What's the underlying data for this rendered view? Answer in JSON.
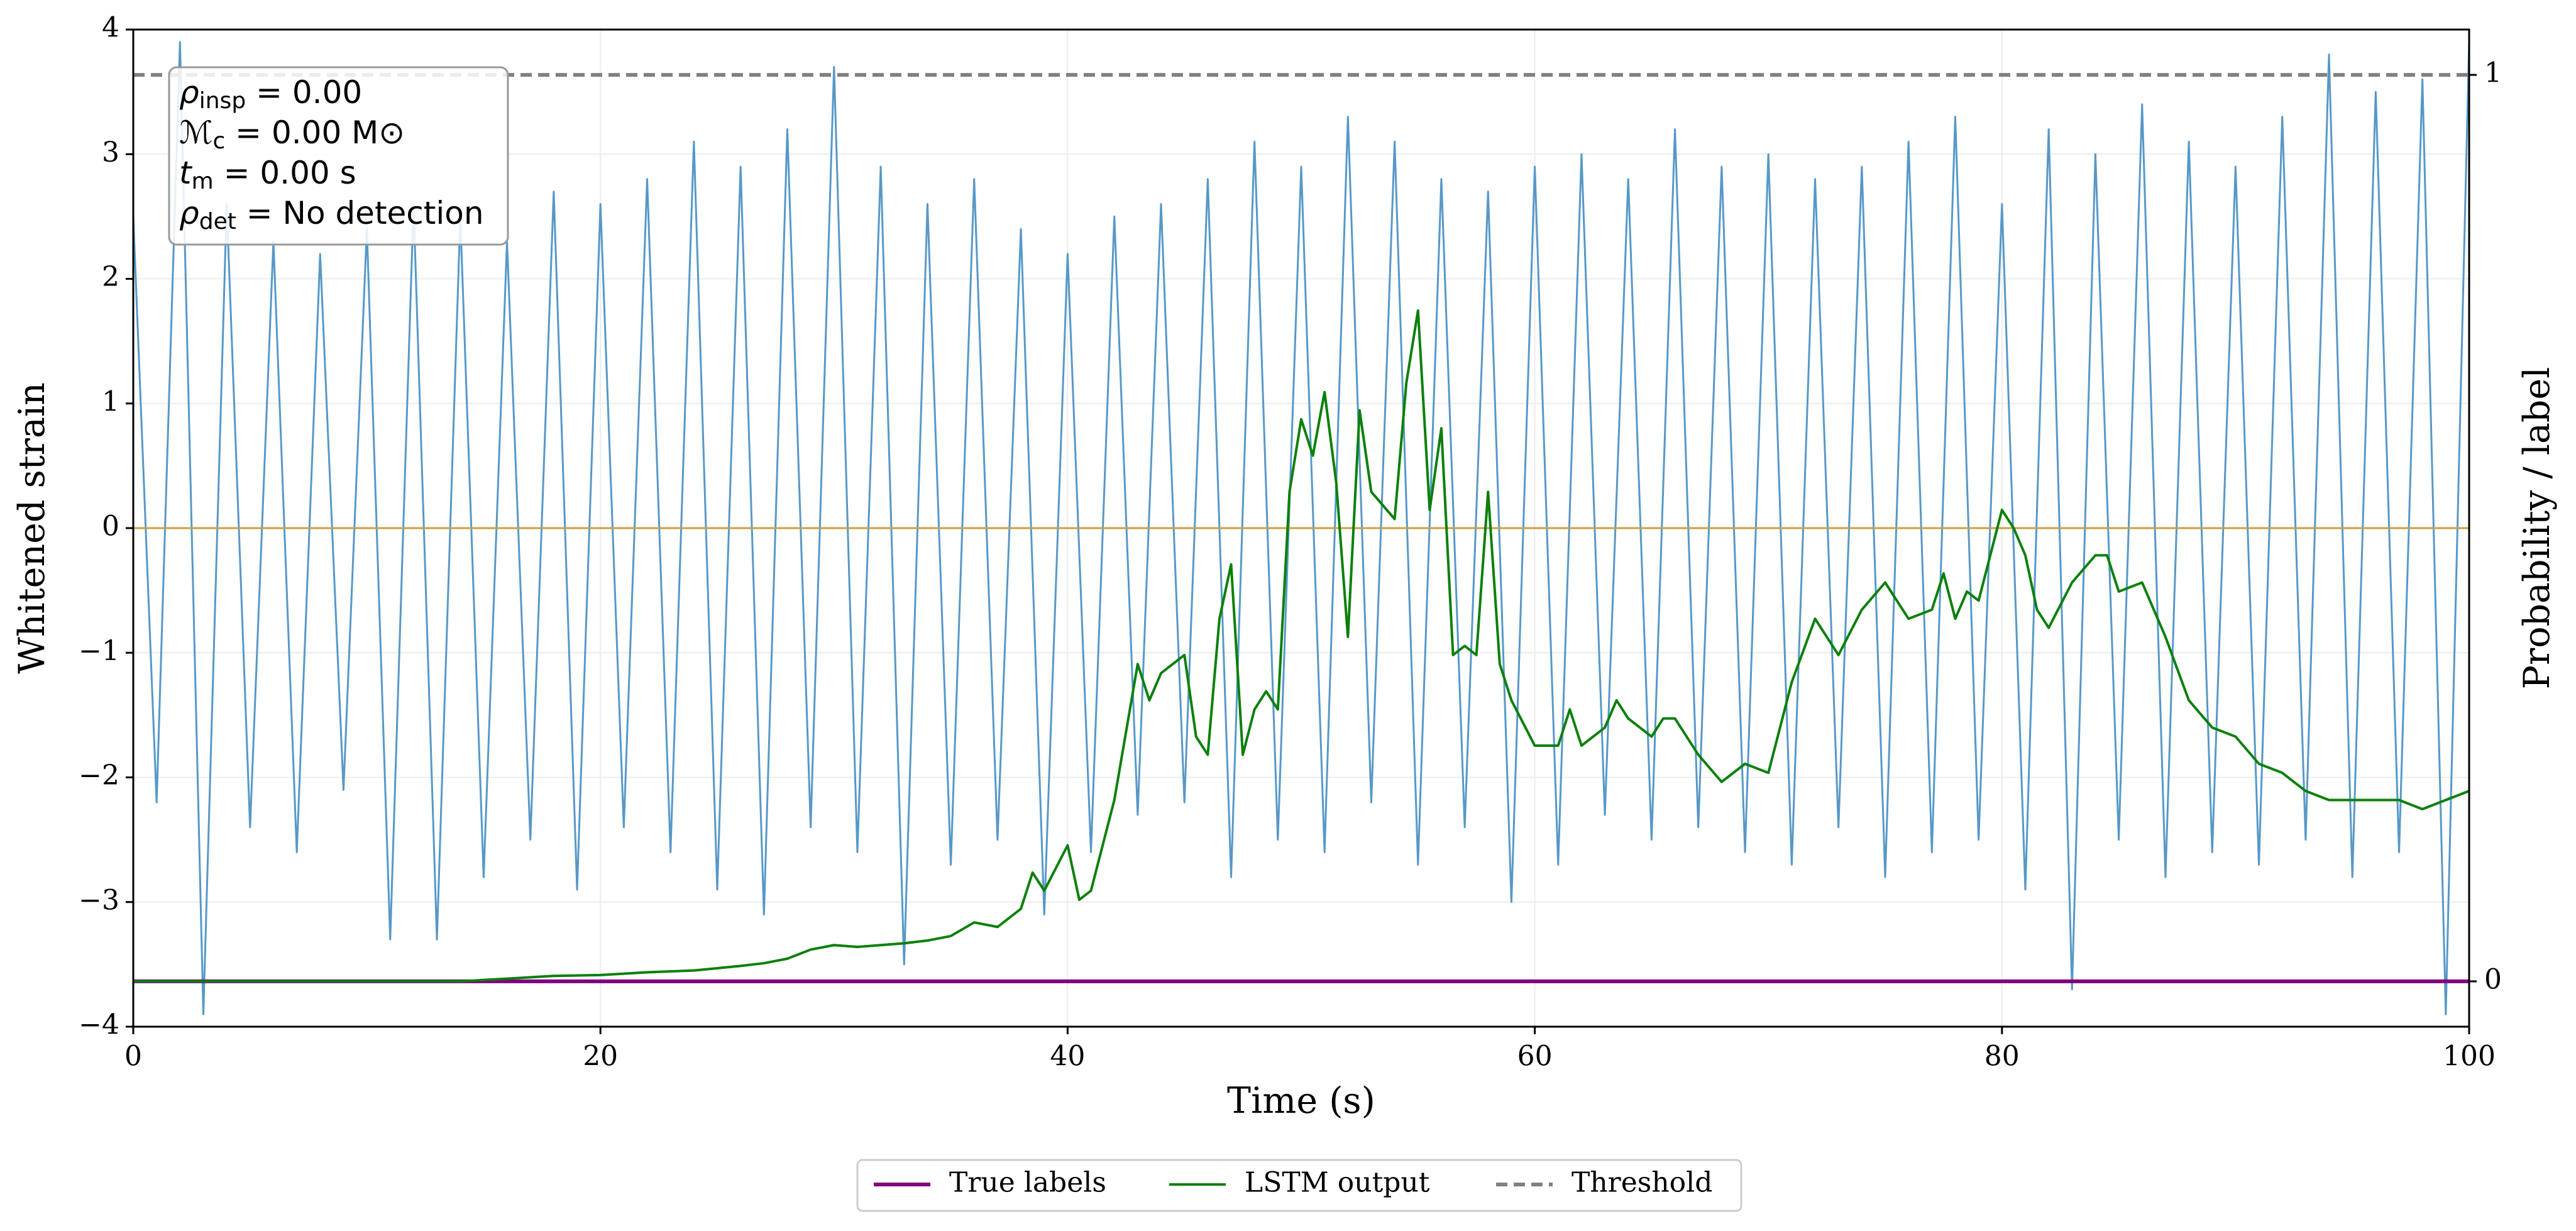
{
  "chart_data": {
    "type": "line",
    "xlabel": "Time (s)",
    "ylabel": "Whitened strain",
    "y2label": "Probability / label",
    "xlim": [
      0,
      100
    ],
    "xticks": [
      0,
      20,
      40,
      60,
      80,
      100
    ],
    "ylim": [
      -4,
      4
    ],
    "yticks": [
      {
        "value": -4,
        "label": "−4"
      },
      {
        "value": -3,
        "label": "−3"
      },
      {
        "value": -2,
        "label": "−2"
      },
      {
        "value": -1,
        "label": "−1"
      },
      0,
      1,
      2,
      3,
      4
    ],
    "y2lim": [
      -0.05,
      1.05
    ],
    "y2ticks": [
      0,
      1
    ],
    "grid": true,
    "legend": "lower center",
    "signal": {
      "color": "#5698c8",
      "x": [
        0,
        1,
        2,
        3,
        4,
        5,
        6,
        7,
        8,
        9,
        10,
        11,
        12,
        13,
        14,
        15,
        16,
        17,
        18,
        19,
        20,
        21,
        22,
        23,
        24,
        25,
        26,
        27,
        28,
        29,
        30,
        31,
        32,
        33,
        34,
        35,
        36,
        37,
        38,
        39,
        40,
        41,
        42,
        43,
        44,
        45,
        46,
        47,
        48,
        49,
        50,
        51,
        52,
        53,
        54,
        55,
        56,
        57,
        58,
        59,
        60,
        61,
        62,
        63,
        64,
        65,
        66,
        67,
        68,
        69,
        70,
        71,
        72,
        73,
        74,
        75,
        76,
        77,
        78,
        79,
        80,
        81,
        82,
        83,
        84,
        85,
        86,
        87,
        88,
        89,
        90,
        91,
        92,
        93,
        94,
        95,
        96,
        97,
        98,
        99,
        100
      ],
      "values": [
        2.5,
        -2.2,
        3.9,
        -3.9,
        2.6,
        -2.4,
        2.3,
        -2.6,
        2.2,
        -2.1,
        2.4,
        -3.3,
        2.6,
        -3.3,
        2.5,
        -2.8,
        2.3,
        -2.5,
        2.7,
        -2.9,
        2.6,
        -2.4,
        2.8,
        -2.6,
        3.1,
        -2.9,
        2.9,
        -3.1,
        3.2,
        -2.4,
        3.7,
        -2.6,
        2.9,
        -3.5,
        2.6,
        -2.7,
        2.8,
        -2.5,
        2.4,
        -3.1,
        2.2,
        -2.6,
        2.5,
        -2.3,
        2.6,
        -2.2,
        2.8,
        -2.8,
        3.1,
        -2.5,
        2.9,
        -2.6,
        3.3,
        -2.2,
        3.1,
        -2.7,
        2.8,
        -2.4,
        2.7,
        -3.0,
        2.9,
        -2.7,
        3.0,
        -2.3,
        2.8,
        -2.5,
        3.2,
        -2.4,
        2.9,
        -2.6,
        3.0,
        -2.7,
        2.8,
        -2.4,
        2.9,
        -2.8,
        3.1,
        -2.6,
        3.3,
        -2.5,
        2.6,
        -2.9,
        3.2,
        -3.7,
        3.0,
        -2.5,
        3.4,
        -2.8,
        3.1,
        -2.6,
        2.9,
        -2.7,
        3.3,
        -2.5,
        3.8,
        -2.8,
        3.5,
        -2.6,
        3.6,
        -3.9,
        3.9
      ]
    },
    "hline": {
      "value": 0,
      "color": "#c8a040"
    },
    "series": [
      {
        "name": "True labels",
        "color": "#800080",
        "axis": "y2",
        "width": 3,
        "x": [
          0,
          100
        ],
        "values": [
          0,
          0
        ]
      },
      {
        "name": "LSTM output",
        "color": "#0a800a",
        "axis": "y2",
        "width": 2,
        "x": [
          0,
          2,
          4,
          6,
          8,
          10,
          12,
          14,
          16,
          18,
          20,
          22,
          24,
          26,
          27,
          28,
          29,
          30,
          31,
          32,
          33,
          34,
          35,
          36,
          37,
          38,
          38.5,
          39,
          40,
          40.5,
          41,
          42,
          43,
          43.5,
          44,
          45,
          45.5,
          46,
          46.5,
          47,
          47.5,
          48,
          48.5,
          49,
          49.5,
          50,
          50.5,
          51,
          51.5,
          52,
          52.5,
          53,
          54,
          54.5,
          55,
          55.5,
          56,
          56.5,
          57,
          57.5,
          58,
          58.5,
          59,
          60,
          61,
          61.5,
          62,
          63,
          63.5,
          64,
          65,
          65.5,
          66,
          67,
          68,
          69,
          70,
          71,
          72,
          73,
          74,
          75,
          76,
          77,
          77.5,
          78,
          78.5,
          79,
          80,
          80.5,
          81,
          81.5,
          82,
          83,
          84,
          84.5,
          85,
          86,
          87,
          88,
          89,
          90,
          91,
          92,
          93,
          94,
          95,
          96,
          97,
          98,
          99,
          100
        ],
        "values": [
          0,
          0,
          0,
          0,
          0,
          0,
          0,
          0,
          0.003,
          0.006,
          0.007,
          0.01,
          0.012,
          0.017,
          0.02,
          0.025,
          0.035,
          0.04,
          0.038,
          0.04,
          0.042,
          0.045,
          0.05,
          0.065,
          0.06,
          0.08,
          0.12,
          0.1,
          0.15,
          0.09,
          0.1,
          0.2,
          0.35,
          0.31,
          0.34,
          0.36,
          0.27,
          0.25,
          0.4,
          0.46,
          0.25,
          0.3,
          0.32,
          0.3,
          0.54,
          0.62,
          0.58,
          0.65,
          0.55,
          0.38,
          0.63,
          0.54,
          0.51,
          0.66,
          0.74,
          0.52,
          0.61,
          0.36,
          0.37,
          0.36,
          0.54,
          0.35,
          0.31,
          0.26,
          0.26,
          0.3,
          0.26,
          0.28,
          0.31,
          0.29,
          0.27,
          0.29,
          0.29,
          0.25,
          0.22,
          0.24,
          0.23,
          0.33,
          0.4,
          0.36,
          0.41,
          0.44,
          0.4,
          0.41,
          0.45,
          0.4,
          0.43,
          0.42,
          0.52,
          0.5,
          0.47,
          0.41,
          0.39,
          0.44,
          0.47,
          0.47,
          0.43,
          0.44,
          0.38,
          0.31,
          0.28,
          0.27,
          0.24,
          0.23,
          0.21,
          0.2,
          0.2,
          0.2,
          0.2,
          0.19,
          0.2,
          0.21
        ]
      },
      {
        "name": "Threshold",
        "color": "#808080",
        "axis": "y2",
        "width": 3,
        "dash": true,
        "x": [
          0,
          100
        ],
        "values": [
          1,
          1
        ]
      }
    ],
    "annotations": [
      {
        "symbol": "ρ",
        "sub": "insp",
        "text": " = 0.00"
      },
      {
        "symbol": "ℳ",
        "sub": "c",
        "text": " = 0.00 M⊙"
      },
      {
        "symbol": "t",
        "sub": "m",
        "text": " = 0.00 s"
      },
      {
        "symbol": "ρ",
        "sub": "det",
        "text": " = No detection"
      }
    ]
  }
}
